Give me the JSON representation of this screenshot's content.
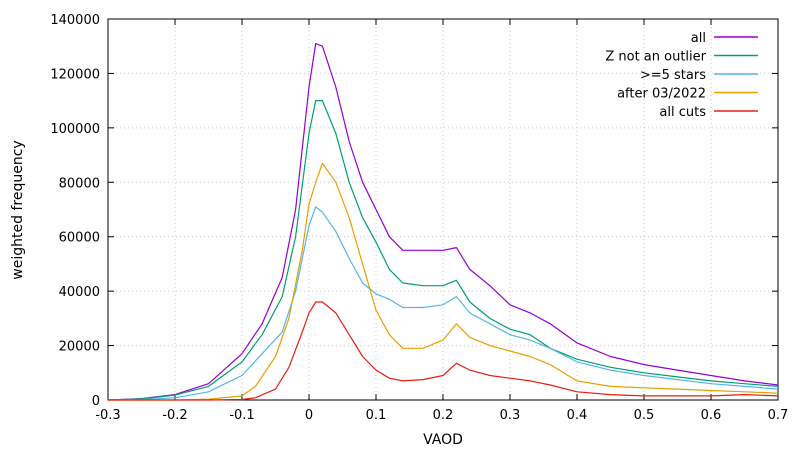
{
  "chart_data": {
    "type": "line",
    "xlabel": "VAOD",
    "ylabel": "weighted frequency",
    "xlim": [
      -0.3,
      0.7
    ],
    "ylim": [
      0,
      140000
    ],
    "x_ticks": [
      "-0.3",
      "-0.2",
      "-0.1",
      "0",
      "0.1",
      "0.2",
      "0.3",
      "0.4",
      "0.5",
      "0.6",
      "0.7"
    ],
    "y_ticks": [
      "0",
      "20000",
      "40000",
      "60000",
      "80000",
      "100000",
      "120000",
      "140000"
    ],
    "grid": true,
    "legend_position": "top-right",
    "series": [
      {
        "name": "all",
        "color": "#9400d3",
        "points": [
          [
            -0.3,
            0
          ],
          [
            -0.25,
            500
          ],
          [
            -0.2,
            2000
          ],
          [
            -0.15,
            6000
          ],
          [
            -0.1,
            17000
          ],
          [
            -0.07,
            28000
          ],
          [
            -0.04,
            45000
          ],
          [
            -0.02,
            70000
          ],
          [
            0.0,
            115000
          ],
          [
            0.01,
            131000
          ],
          [
            0.02,
            130000
          ],
          [
            0.04,
            115000
          ],
          [
            0.06,
            95000
          ],
          [
            0.08,
            80000
          ],
          [
            0.1,
            70000
          ],
          [
            0.12,
            60000
          ],
          [
            0.14,
            55000
          ],
          [
            0.17,
            55000
          ],
          [
            0.2,
            55000
          ],
          [
            0.22,
            56000
          ],
          [
            0.24,
            48000
          ],
          [
            0.27,
            42000
          ],
          [
            0.3,
            35000
          ],
          [
            0.33,
            32000
          ],
          [
            0.36,
            28000
          ],
          [
            0.4,
            21000
          ],
          [
            0.45,
            16000
          ],
          [
            0.5,
            13000
          ],
          [
            0.55,
            11000
          ],
          [
            0.6,
            9000
          ],
          [
            0.65,
            7000
          ],
          [
            0.7,
            5500
          ]
        ]
      },
      {
        "name": "Z not an outlier",
        "color": "#009e73",
        "points": [
          [
            -0.3,
            0
          ],
          [
            -0.25,
            400
          ],
          [
            -0.2,
            1800
          ],
          [
            -0.15,
            5000
          ],
          [
            -0.1,
            14000
          ],
          [
            -0.07,
            24000
          ],
          [
            -0.04,
            38000
          ],
          [
            -0.02,
            60000
          ],
          [
            0.0,
            98000
          ],
          [
            0.01,
            110000
          ],
          [
            0.02,
            110000
          ],
          [
            0.04,
            98000
          ],
          [
            0.06,
            80000
          ],
          [
            0.08,
            67000
          ],
          [
            0.1,
            58000
          ],
          [
            0.12,
            48000
          ],
          [
            0.14,
            43000
          ],
          [
            0.17,
            42000
          ],
          [
            0.2,
            42000
          ],
          [
            0.22,
            44000
          ],
          [
            0.24,
            36000
          ],
          [
            0.27,
            30000
          ],
          [
            0.3,
            26000
          ],
          [
            0.33,
            24000
          ],
          [
            0.36,
            19000
          ],
          [
            0.4,
            15000
          ],
          [
            0.45,
            12000
          ],
          [
            0.5,
            10000
          ],
          [
            0.55,
            8500
          ],
          [
            0.6,
            7000
          ],
          [
            0.65,
            6000
          ],
          [
            0.7,
            5000
          ]
        ]
      },
      {
        "name": ">=5 stars",
        "color": "#56b4e9",
        "points": [
          [
            -0.3,
            0
          ],
          [
            -0.25,
            200
          ],
          [
            -0.2,
            800
          ],
          [
            -0.15,
            3000
          ],
          [
            -0.1,
            9000
          ],
          [
            -0.07,
            17000
          ],
          [
            -0.04,
            25000
          ],
          [
            -0.02,
            40000
          ],
          [
            0.0,
            64000
          ],
          [
            0.01,
            71000
          ],
          [
            0.02,
            69000
          ],
          [
            0.04,
            62000
          ],
          [
            0.06,
            52000
          ],
          [
            0.08,
            43000
          ],
          [
            0.1,
            39000
          ],
          [
            0.12,
            37000
          ],
          [
            0.14,
            34000
          ],
          [
            0.17,
            34000
          ],
          [
            0.2,
            35000
          ],
          [
            0.22,
            38000
          ],
          [
            0.24,
            32000
          ],
          [
            0.27,
            28000
          ],
          [
            0.3,
            24000
          ],
          [
            0.33,
            22000
          ],
          [
            0.36,
            19000
          ],
          [
            0.4,
            14000
          ],
          [
            0.45,
            11000
          ],
          [
            0.5,
            9000
          ],
          [
            0.55,
            7500
          ],
          [
            0.6,
            6000
          ],
          [
            0.65,
            5000
          ],
          [
            0.7,
            4000
          ]
        ]
      },
      {
        "name": "after 03/2022",
        "color": "#e69f00",
        "points": [
          [
            -0.3,
            0
          ],
          [
            -0.25,
            0
          ],
          [
            -0.2,
            0
          ],
          [
            -0.15,
            300
          ],
          [
            -0.1,
            1500
          ],
          [
            -0.08,
            5000
          ],
          [
            -0.05,
            16000
          ],
          [
            -0.03,
            30000
          ],
          [
            -0.01,
            55000
          ],
          [
            0.0,
            72000
          ],
          [
            0.01,
            80000
          ],
          [
            0.02,
            87000
          ],
          [
            0.04,
            80000
          ],
          [
            0.06,
            67000
          ],
          [
            0.08,
            50000
          ],
          [
            0.1,
            33000
          ],
          [
            0.12,
            24000
          ],
          [
            0.14,
            19000
          ],
          [
            0.17,
            19000
          ],
          [
            0.2,
            22000
          ],
          [
            0.22,
            28000
          ],
          [
            0.24,
            23000
          ],
          [
            0.27,
            20000
          ],
          [
            0.3,
            18000
          ],
          [
            0.33,
            16000
          ],
          [
            0.36,
            13000
          ],
          [
            0.4,
            7000
          ],
          [
            0.45,
            5000
          ],
          [
            0.5,
            4500
          ],
          [
            0.55,
            4000
          ],
          [
            0.6,
            3500
          ],
          [
            0.65,
            3000
          ],
          [
            0.7,
            2500
          ]
        ]
      },
      {
        "name": "all cuts",
        "color": "#e51e10",
        "points": [
          [
            -0.3,
            0
          ],
          [
            -0.25,
            0
          ],
          [
            -0.2,
            0
          ],
          [
            -0.15,
            0
          ],
          [
            -0.1,
            200
          ],
          [
            -0.08,
            800
          ],
          [
            -0.05,
            4000
          ],
          [
            -0.03,
            12000
          ],
          [
            -0.01,
            25000
          ],
          [
            0.0,
            32000
          ],
          [
            0.01,
            36000
          ],
          [
            0.02,
            36000
          ],
          [
            0.04,
            32000
          ],
          [
            0.06,
            24000
          ],
          [
            0.08,
            16000
          ],
          [
            0.1,
            11000
          ],
          [
            0.12,
            8000
          ],
          [
            0.14,
            7000
          ],
          [
            0.17,
            7500
          ],
          [
            0.2,
            9000
          ],
          [
            0.22,
            13500
          ],
          [
            0.24,
            11000
          ],
          [
            0.27,
            9000
          ],
          [
            0.3,
            8000
          ],
          [
            0.33,
            7000
          ],
          [
            0.36,
            5500
          ],
          [
            0.4,
            3000
          ],
          [
            0.45,
            2000
          ],
          [
            0.5,
            1500
          ],
          [
            0.55,
            1500
          ],
          [
            0.6,
            1500
          ],
          [
            0.65,
            2000
          ],
          [
            0.7,
            1500
          ]
        ]
      }
    ]
  }
}
